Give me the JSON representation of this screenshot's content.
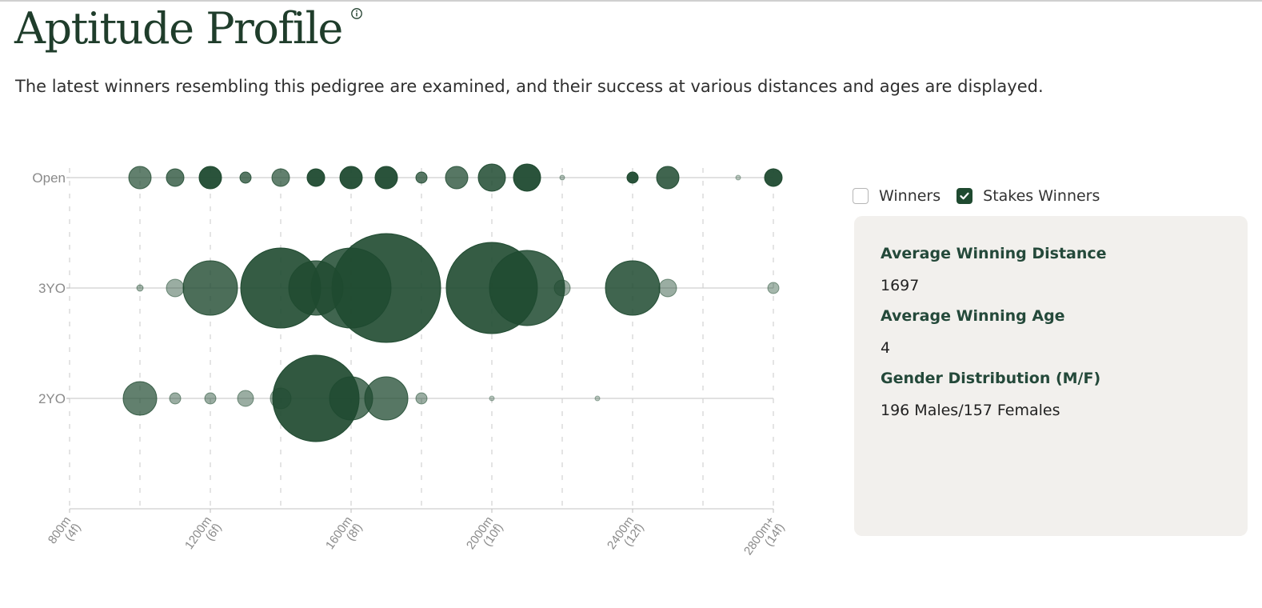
{
  "header": {
    "title": "Aptitude Profile",
    "subtitle": "The latest winners resembling this pedigree are examined, and their success at various distances and ages are displayed."
  },
  "legend": {
    "items": [
      {
        "label": "Winners",
        "checked": false
      },
      {
        "label": "Stakes Winners",
        "checked": true
      }
    ]
  },
  "stats": {
    "avg_distance_label": "Average Winning Distance",
    "avg_distance_value": "1697",
    "avg_age_label": "Average Winning Age",
    "avg_age_value": "4",
    "gender_label": "Gender Distribution (M/F)",
    "gender_value": "196 Males/157 Females"
  },
  "colors": {
    "bubble": "#1f4a30",
    "title": "#1f3d2b",
    "panel": "#f2f0ed"
  },
  "chart_data": {
    "type": "scatter",
    "encoding": "bubble",
    "x_ticks": [
      {
        "value": 800,
        "label": [
          "800m",
          "(4f)"
        ]
      },
      {
        "value": 1200,
        "label": [
          "1200m",
          "(6f)"
        ]
      },
      {
        "value": 1600,
        "label": [
          "1600m",
          "(8f)"
        ]
      },
      {
        "value": 2000,
        "label": [
          "2000m",
          "(10f)"
        ]
      },
      {
        "value": 2400,
        "label": [
          "2400m",
          "(12f)"
        ]
      },
      {
        "value": 2800,
        "label": [
          "2800m+",
          "(14f)"
        ]
      }
    ],
    "xlim": [
      800,
      2800
    ],
    "rows": [
      "Open",
      "3YO",
      "2YO"
    ],
    "grid": true,
    "legend_position": "right",
    "points": [
      {
        "row": "Open",
        "x": 1000,
        "size": 14,
        "opacity": 0.7
      },
      {
        "row": "Open",
        "x": 1100,
        "size": 11,
        "opacity": 0.75
      },
      {
        "row": "Open",
        "x": 1200,
        "size": 14,
        "opacity": 0.95
      },
      {
        "row": "Open",
        "x": 1300,
        "size": 7,
        "opacity": 0.75
      },
      {
        "row": "Open",
        "x": 1400,
        "size": 11,
        "opacity": 0.7
      },
      {
        "row": "Open",
        "x": 1500,
        "size": 11,
        "opacity": 0.95
      },
      {
        "row": "Open",
        "x": 1600,
        "size": 14,
        "opacity": 0.95
      },
      {
        "row": "Open",
        "x": 1700,
        "size": 14,
        "opacity": 0.95
      },
      {
        "row": "Open",
        "x": 1800,
        "size": 7,
        "opacity": 0.75
      },
      {
        "row": "Open",
        "x": 1900,
        "size": 14,
        "opacity": 0.75
      },
      {
        "row": "Open",
        "x": 2000,
        "size": 17,
        "opacity": 0.85
      },
      {
        "row": "Open",
        "x": 2100,
        "size": 17,
        "opacity": 0.95
      },
      {
        "row": "Open",
        "x": 2200,
        "size": 3,
        "opacity": 0.35
      },
      {
        "row": "Open",
        "x": 2400,
        "size": 7,
        "opacity": 0.95
      },
      {
        "row": "Open",
        "x": 2500,
        "size": 14,
        "opacity": 0.85
      },
      {
        "row": "Open",
        "x": 2700,
        "size": 3,
        "opacity": 0.3
      },
      {
        "row": "Open",
        "x": 2800,
        "size": 11,
        "opacity": 0.95
      },
      {
        "row": "3YO",
        "x": 1000,
        "size": 4,
        "opacity": 0.4
      },
      {
        "row": "3YO",
        "x": 1100,
        "size": 11,
        "opacity": 0.45
      },
      {
        "row": "3YO",
        "x": 1200,
        "size": 34,
        "opacity": 0.8
      },
      {
        "row": "3YO",
        "x": 1400,
        "size": 50,
        "opacity": 0.9
      },
      {
        "row": "3YO",
        "x": 1500,
        "size": 34,
        "opacity": 0.8
      },
      {
        "row": "3YO",
        "x": 1600,
        "size": 50,
        "opacity": 0.85
      },
      {
        "row": "3YO",
        "x": 1700,
        "size": 68,
        "opacity": 0.9
      },
      {
        "row": "3YO",
        "x": 2000,
        "size": 57,
        "opacity": 0.9
      },
      {
        "row": "3YO",
        "x": 2100,
        "size": 47,
        "opacity": 0.85
      },
      {
        "row": "3YO",
        "x": 2200,
        "size": 10,
        "opacity": 0.45
      },
      {
        "row": "3YO",
        "x": 2400,
        "size": 34,
        "opacity": 0.85
      },
      {
        "row": "3YO",
        "x": 2500,
        "size": 11,
        "opacity": 0.45
      },
      {
        "row": "3YO",
        "x": 2800,
        "size": 7,
        "opacity": 0.4
      },
      {
        "row": "2YO",
        "x": 1000,
        "size": 21,
        "opacity": 0.7
      },
      {
        "row": "2YO",
        "x": 1100,
        "size": 7,
        "opacity": 0.45
      },
      {
        "row": "2YO",
        "x": 1200,
        "size": 7,
        "opacity": 0.45
      },
      {
        "row": "2YO",
        "x": 1300,
        "size": 10,
        "opacity": 0.45
      },
      {
        "row": "2YO",
        "x": 1400,
        "size": 13,
        "opacity": 0.45
      },
      {
        "row": "2YO",
        "x": 1500,
        "size": 54,
        "opacity": 0.92
      },
      {
        "row": "2YO",
        "x": 1600,
        "size": 27,
        "opacity": 0.75
      },
      {
        "row": "2YO",
        "x": 1700,
        "size": 27,
        "opacity": 0.75
      },
      {
        "row": "2YO",
        "x": 1800,
        "size": 7,
        "opacity": 0.45
      },
      {
        "row": "2YO",
        "x": 2000,
        "size": 3,
        "opacity": 0.3
      },
      {
        "row": "2YO",
        "x": 2300,
        "size": 3,
        "opacity": 0.3
      }
    ]
  }
}
